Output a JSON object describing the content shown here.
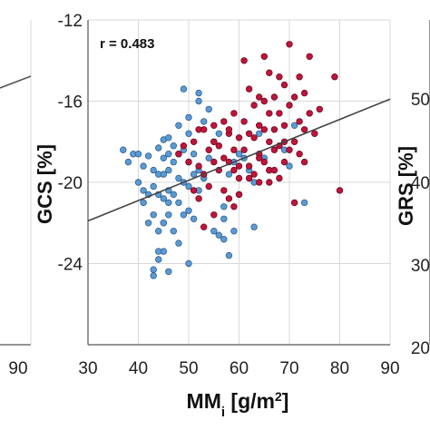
{
  "chart_data": {
    "type": "scatter",
    "xlabel": "MM",
    "xlabel_sub": "i",
    "xlabel_unit_pre": " [g/m",
    "xlabel_unit_sup": "2",
    "xlabel_unit_post": "]",
    "ylabel": "GCS [%]",
    "xlim": [
      30,
      90
    ],
    "ylim": [
      -28,
      -12
    ],
    "xticks": [
      30,
      40,
      50,
      60,
      70,
      80,
      90
    ],
    "yticks": [
      -12,
      -16,
      -20,
      -24
    ],
    "grid": true,
    "annotation": "r = 0.483",
    "regression": {
      "x": [
        30,
        90
      ],
      "y": [
        -21.9,
        -15.9
      ]
    },
    "colors": {
      "blue": "#5b9bd5",
      "red": "#c0143c",
      "blue_edge": "#2f5f8f",
      "red_edge": "#6e0b1f",
      "line": "#444444"
    },
    "series": [
      {
        "color": "blue",
        "x": [
          37,
          38,
          39,
          40,
          40,
          41,
          41,
          41,
          42,
          42,
          42,
          43,
          43,
          43,
          43,
          44,
          44,
          44,
          44,
          44,
          45,
          45,
          45,
          45,
          45,
          45,
          46,
          46,
          46,
          46,
          46,
          46,
          47,
          47,
          47,
          47,
          48,
          48,
          48,
          48,
          48,
          49,
          49,
          49,
          49,
          50,
          50,
          50,
          50,
          50,
          50,
          51,
          51,
          51,
          52,
          52,
          52,
          53,
          53,
          54,
          54,
          55,
          55,
          56,
          56,
          57,
          57,
          58,
          58,
          59,
          59,
          60,
          60,
          61,
          62,
          63,
          63,
          64,
          65,
          66,
          69,
          70,
          71,
          73,
          57,
          52,
          46,
          44,
          43,
          45
        ],
        "y": [
          -18.4,
          -19.0,
          -18.6,
          -20.0,
          -18.6,
          -19.2,
          -21.0,
          -20.4,
          -18.7,
          -20.6,
          -22.0,
          -19.4,
          -20.2,
          -21.6,
          -24.3,
          -18.3,
          -19.6,
          -20.6,
          -22.4,
          -23.8,
          -17.9,
          -18.8,
          -19.6,
          -20.8,
          -22.0,
          -23.4,
          -17.8,
          -18.6,
          -19.4,
          -20.4,
          -21.6,
          -24.4,
          -18.2,
          -19.0,
          -20.6,
          -22.4,
          -17.2,
          -18.6,
          -19.8,
          -21.0,
          -23.0,
          -15.4,
          -18.4,
          -20.0,
          -21.6,
          -16.8,
          -17.6,
          -19.0,
          -20.2,
          -21.4,
          -24.0,
          -18.6,
          -19.6,
          -21.8,
          -16.0,
          -19.4,
          -20.4,
          -17.0,
          -19.8,
          -16.4,
          -18.8,
          -18.0,
          -22.4,
          -17.6,
          -22.6,
          -21.2,
          -22.8,
          -19.6,
          -23.6,
          -19.0,
          -22.4,
          -18.6,
          -20.6,
          -18.8,
          -19.4,
          -20.0,
          -22.2,
          -17.6,
          -18.8,
          -19.4,
          -18.4,
          -19.2,
          -17.2,
          -21.0,
          -21.8,
          -15.6,
          -21.0,
          -23.4,
          -24.6,
          -22.0
        ]
      },
      {
        "color": "red",
        "x": [
          48,
          49,
          50,
          51,
          51,
          52,
          52,
          53,
          53,
          53,
          54,
          54,
          55,
          55,
          55,
          56,
          56,
          57,
          57,
          57,
          58,
          58,
          58,
          59,
          59,
          59,
          59,
          60,
          60,
          60,
          61,
          61,
          61,
          62,
          62,
          62,
          63,
          63,
          63,
          64,
          64,
          64,
          64,
          65,
          65,
          65,
          65,
          66,
          66,
          66,
          66,
          67,
          67,
          67,
          68,
          68,
          68,
          68,
          69,
          69,
          69,
          70,
          70,
          70,
          71,
          71,
          72,
          72,
          72,
          73,
          73,
          74,
          74,
          75,
          76,
          79,
          80,
          62,
          66,
          71,
          52,
          55,
          58,
          60,
          64,
          67,
          69,
          73
        ],
        "y": [
          -18.6,
          -18.2,
          -19.0,
          -18.0,
          -20.4,
          -17.4,
          -20.8,
          -17.4,
          -19.6,
          -22.2,
          -18.4,
          -20.2,
          -17.2,
          -19.0,
          -21.6,
          -18.2,
          -19.4,
          -17.0,
          -18.8,
          -20.4,
          -17.6,
          -19.0,
          -20.8,
          -16.6,
          -18.4,
          -19.4,
          -21.2,
          -17.8,
          -19.2,
          -20.6,
          -14.0,
          -17.0,
          -18.4,
          -15.4,
          -17.6,
          -19.8,
          -16.2,
          -17.8,
          -19.6,
          -15.8,
          -17.2,
          -18.6,
          -20.0,
          -13.8,
          -16.0,
          -17.4,
          -19.0,
          -14.6,
          -16.6,
          -18.0,
          -19.4,
          -15.8,
          -17.4,
          -19.4,
          -14.8,
          -16.6,
          -18.2,
          -19.8,
          -15.2,
          -17.2,
          -19.0,
          -13.2,
          -16.2,
          -18.4,
          -15.8,
          -18.0,
          -14.8,
          -17.0,
          -18.6,
          -15.6,
          -17.4,
          -13.8,
          -16.6,
          -17.6,
          -16.4,
          -14.8,
          -20.4,
          -19.2,
          -20.0,
          -21.0,
          -19.2,
          -18.0,
          -17.4,
          -19.8,
          -18.8,
          -18.4,
          -18.0,
          -19.0
        ]
      }
    ]
  }
}
